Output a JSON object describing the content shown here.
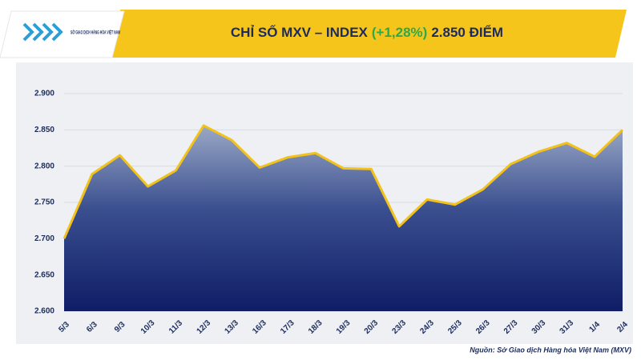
{
  "chart_data": {
    "type": "area",
    "title": "CHỈ SỐ MXV – INDEX",
    "title_change": "(+1,28%)",
    "title_value": "2.850 ĐIỂM",
    "logo_text": "SỞ GIAO DỊCH HÀNG HÓA VIỆT NAM",
    "source": "Nguồn: Sở Giao dịch Hàng hóa Việt Nam (MXV)",
    "categories": [
      "5/3",
      "6/3",
      "9/3",
      "10/3",
      "11/3",
      "12/3",
      "13/3",
      "16/3",
      "17/3",
      "18/3",
      "19/3",
      "20/3",
      "23/3",
      "24/3",
      "25/3",
      "26/3",
      "27/3",
      "30/3",
      "31/3",
      "1/4",
      "2/4"
    ],
    "values": [
      2700,
      2789,
      2815,
      2772,
      2794,
      2856,
      2836,
      2798,
      2812,
      2818,
      2797,
      2796,
      2717,
      2754,
      2747,
      2768,
      2803,
      2820,
      2832,
      2813,
      2850
    ],
    "color": "#f2c21b",
    "ylim": [
      2600,
      2900
    ],
    "yticks": [
      {
        "value": 2600,
        "label": "2.600"
      },
      {
        "value": 2650,
        "label": "2.650"
      },
      {
        "value": 2700,
        "label": "2.700"
      },
      {
        "value": 2750,
        "label": "2.750"
      },
      {
        "value": 2800,
        "label": "2.800"
      },
      {
        "value": 2850,
        "label": "2.850"
      },
      {
        "value": 2900,
        "label": "2.900"
      }
    ],
    "grid": true
  }
}
